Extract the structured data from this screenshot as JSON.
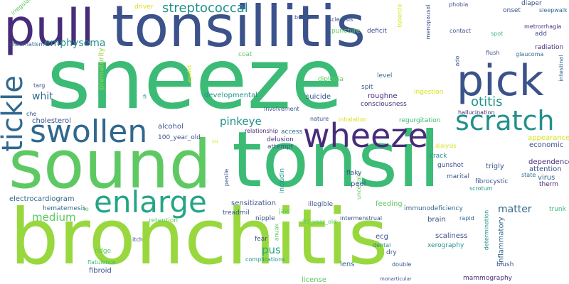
{
  "palette": {
    "purple": "#472c7a",
    "navy": "#3b528b",
    "blue": "#31688e",
    "teal": "#21918c",
    "sea": "#25a585",
    "green": "#3bbb75",
    "mid_green": "#5ec962",
    "lime": "#98d83e",
    "yellow": "#d8e219"
  },
  "words": [
    "sneeze",
    "bronchitis",
    "tonsil",
    "sound",
    "tonsillitis",
    "pull",
    "pick",
    "wheeze",
    "swollen",
    "enlarge",
    "scratch",
    "tickle",
    "streptococcal",
    "emphysema",
    "otitis",
    "pinkeye",
    "matter",
    "pus",
    "medium",
    "whit",
    "developmental",
    "prematurity",
    "alcohol",
    "100_year_old",
    "cholesterol",
    "electrocardiogram",
    "hematemesis",
    "sensitization",
    "treadmil",
    "jaw",
    "illegible",
    "feeding",
    "immunodeficiency",
    "brain",
    "scaliness",
    "xerography",
    "inflammatory",
    "fibroid",
    "flatulence",
    "ridge",
    "itch",
    "retention",
    "lens",
    "license",
    "mammography",
    "blush",
    "virus",
    "therm",
    "dependence",
    "attention",
    "economic",
    "appearance",
    "state",
    "fibrocystic",
    "scrotum",
    "trigly",
    "gunshot",
    "marital",
    "crack",
    "dialysis",
    "hallucination",
    "regurgitation",
    "ingestion",
    "consciousness",
    "roughne",
    "spit",
    "level",
    "suicide",
    "diplopia",
    "involvement",
    "nature",
    "inhalation",
    "relationship",
    "access",
    "delusion",
    "attempt",
    "includin",
    "uncertain",
    "peel",
    "flaky",
    "penile",
    "nipple",
    "intermenstrual",
    "ecg",
    "dental",
    "dry",
    "double",
    "complications",
    "fear",
    "anuak",
    "99_year_old",
    "rapid",
    "determination",
    "trunk",
    "fo",
    "radiation",
    "glaucoma",
    "flush",
    "spot",
    "add",
    "metrorrhagia",
    "intestinal",
    "sleepwalk",
    "diaper",
    "onset",
    "phobia",
    "contact",
    "deficit",
    "puncture",
    "sclerosis",
    "bump",
    "menopausal",
    "tubercle",
    "driver",
    "rheumatism",
    "irregular",
    "targ",
    "che",
    "fi",
    "eyelid",
    "coat",
    "ado",
    "monarticular",
    "cu"
  ]
}
